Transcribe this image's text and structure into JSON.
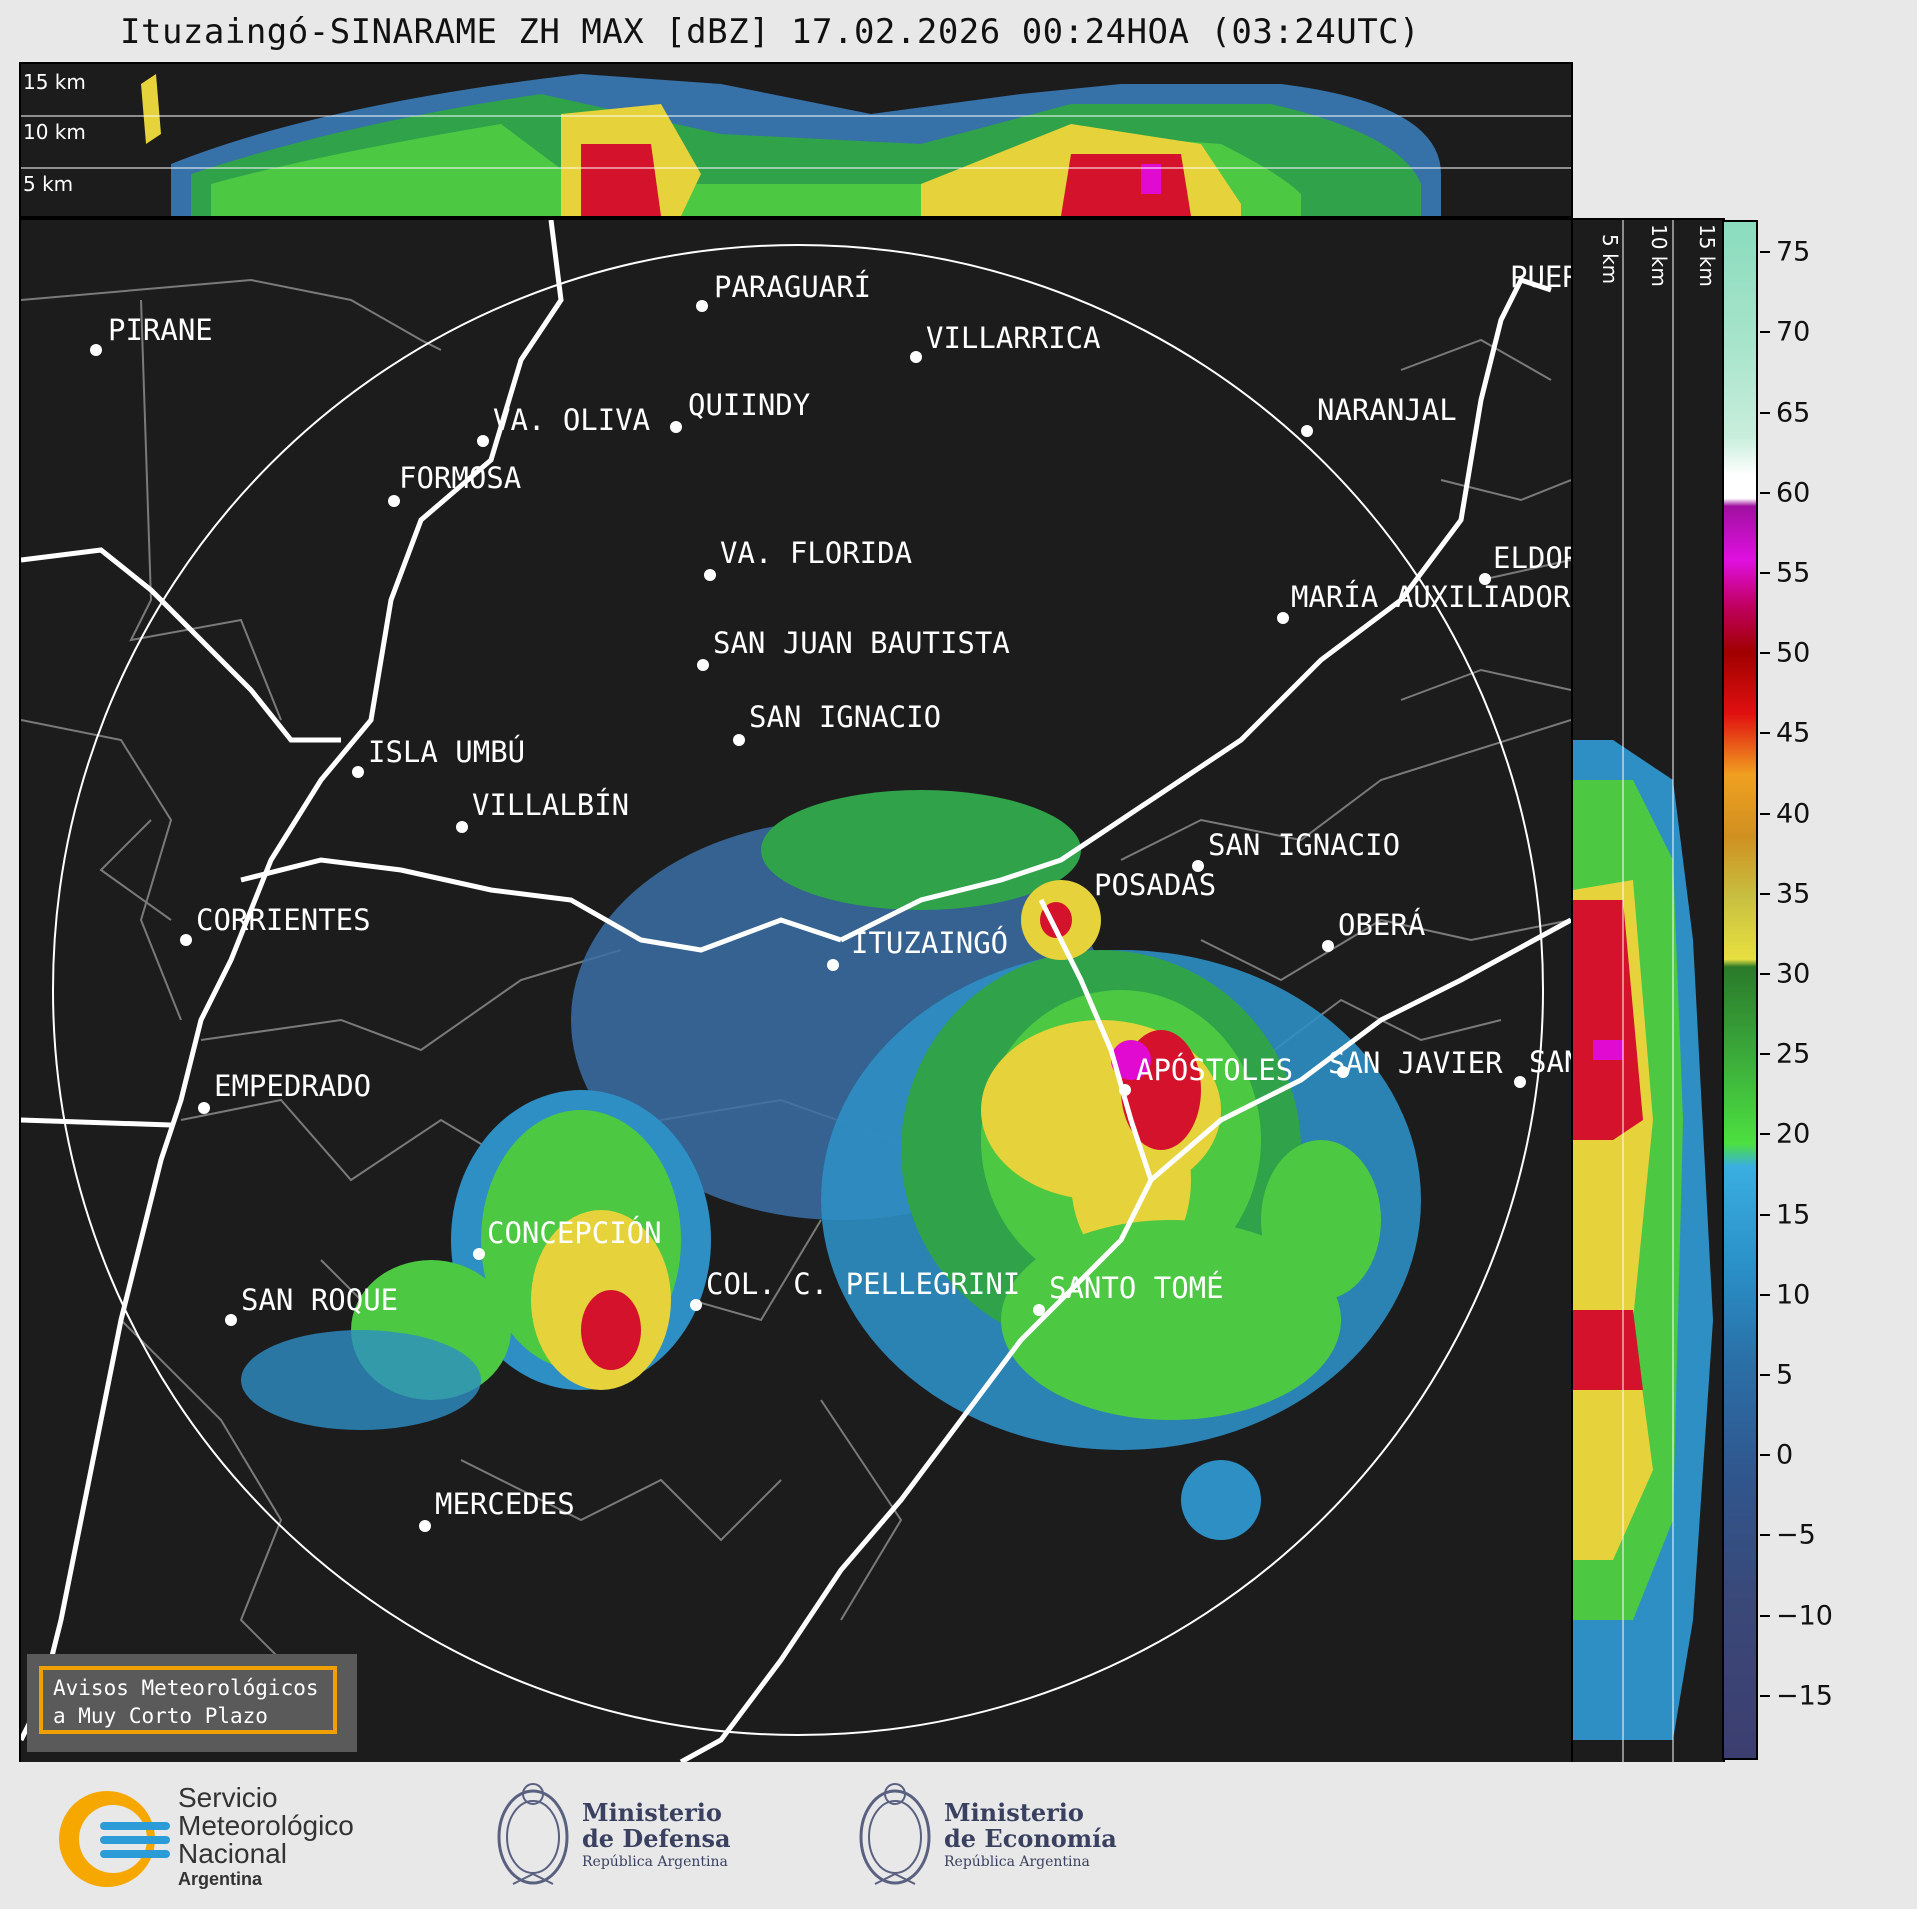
{
  "title": "Ituzaingó-SINARAME ZH MAX [dBZ] 17.02.2026 00:24HOA (03:24UTC)",
  "altitude_labels": {
    "h15": "15 km",
    "h10": "10 km",
    "h5": "5 km"
  },
  "cities": [
    {
      "name": "PIRANE"
    },
    {
      "name": "PARAGUARÍ"
    },
    {
      "name": "VILLARRICA"
    },
    {
      "name": "QUIINDY"
    },
    {
      "name": "VA. OLIVA"
    },
    {
      "name": "FORMOSA"
    },
    {
      "name": "NARANJAL"
    },
    {
      "name": "VA. FLORIDA"
    },
    {
      "name": "ELDORADO"
    },
    {
      "name": "MARÍA AUXILIADORA"
    },
    {
      "name": "SAN JUAN BAUTISTA"
    },
    {
      "name": "SAN IGNACIO"
    },
    {
      "name": "ISLA UMBÚ"
    },
    {
      "name": "VILLALBÍN"
    },
    {
      "name": "SAN IGNACIO"
    },
    {
      "name": "POSADAS"
    },
    {
      "name": "CORRIENTES"
    },
    {
      "name": "ITUZAINGÓ"
    },
    {
      "name": "OBERÁ"
    },
    {
      "name": "APÓSTOLES"
    },
    {
      "name": "SAN JAVIER"
    },
    {
      "name": "SAN"
    },
    {
      "name": "EMPEDRADO"
    },
    {
      "name": "CONCEPCIÓN"
    },
    {
      "name": "COL. C. PELLEGRINI"
    },
    {
      "name": "SANTO TOMÉ"
    },
    {
      "name": "SAN ROQUE"
    },
    {
      "name": "MERCEDES"
    },
    {
      "name": "PUERTO"
    }
  ],
  "colorbar": {
    "ticks": [
      "75",
      "70",
      "65",
      "60",
      "55",
      "50",
      "45",
      "40",
      "35",
      "30",
      "25",
      "20",
      "15",
      "10",
      "5",
      "0",
      "−5",
      "−10",
      "−15"
    ],
    "min": -19,
    "max": 77
  },
  "aviso": {
    "line1": "Avisos Meteorológicos",
    "line2": "a Muy Corto Plazo"
  },
  "footer": {
    "smn": {
      "l1": "Servicio",
      "l2": "Meteorológico",
      "l3": "Nacional",
      "l4": "Argentina"
    },
    "defensa": {
      "l1": "Ministerio",
      "l2": "de Defensa",
      "l3": "República Argentina"
    },
    "economia": {
      "l1": "Ministerio",
      "l2": "de Economía",
      "l3": "República Argentina"
    }
  },
  "colors": {
    "background": "#1c1c1c",
    "range_ring": "#ffffff",
    "river": "#ffffff",
    "border": "#808080",
    "aviso_border": "#f0a000"
  }
}
